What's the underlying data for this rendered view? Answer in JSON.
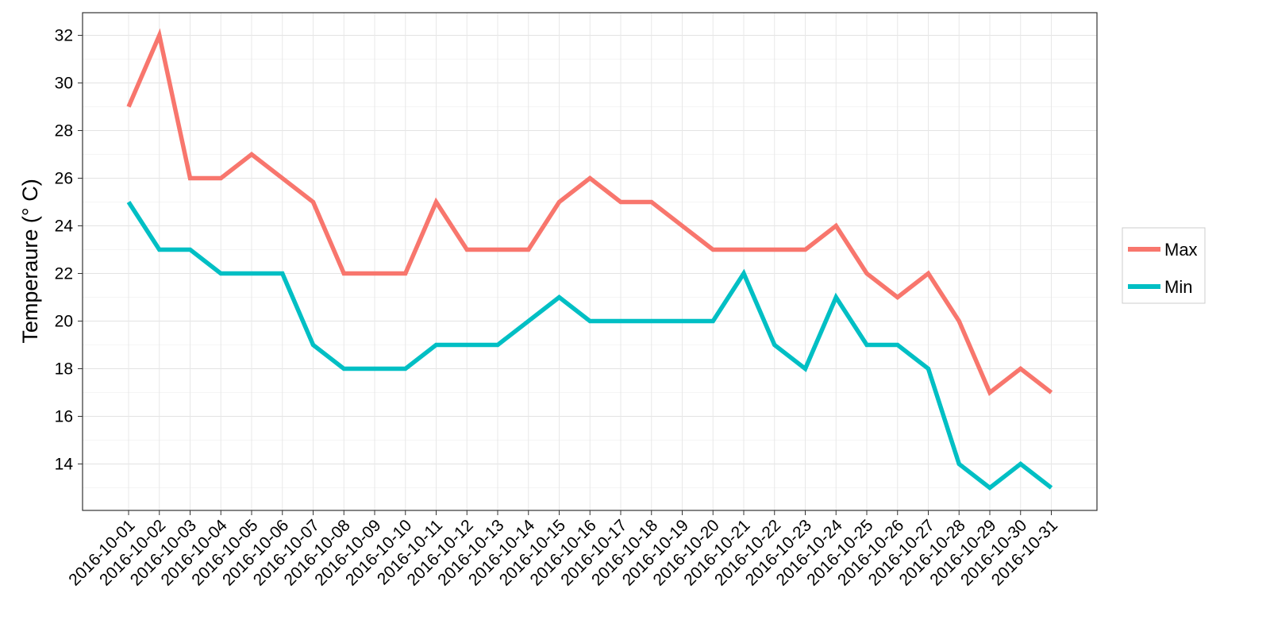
{
  "chart_data": {
    "type": "line",
    "title": "",
    "xlabel": "",
    "ylabel": "Temperaure (° C)",
    "x": [
      "2016-10-01",
      "2016-10-02",
      "2016-10-03",
      "2016-10-04",
      "2016-10-05",
      "2016-10-06",
      "2016-10-07",
      "2016-10-08",
      "2016-10-09",
      "2016-10-10",
      "2016-10-11",
      "2016-10-12",
      "2016-10-13",
      "2016-10-14",
      "2016-10-15",
      "2016-10-16",
      "2016-10-17",
      "2016-10-18",
      "2016-10-19",
      "2016-10-20",
      "2016-10-21",
      "2016-10-22",
      "2016-10-23",
      "2016-10-24",
      "2016-10-25",
      "2016-10-26",
      "2016-10-27",
      "2016-10-28",
      "2016-10-29",
      "2016-10-30",
      "2016-10-31"
    ],
    "series": [
      {
        "name": "Max",
        "color": "#f8766d",
        "values": [
          29,
          32,
          26,
          26,
          27,
          26,
          25,
          22,
          22,
          22,
          25,
          23,
          23,
          23,
          25,
          26,
          25,
          25,
          24,
          23,
          23,
          23,
          23,
          24,
          22,
          21,
          22,
          20,
          17,
          18,
          17
        ]
      },
      {
        "name": "Min",
        "color": "#00bfc4",
        "values": [
          25,
          23,
          23,
          22,
          22,
          22,
          19,
          18,
          18,
          18,
          19,
          19,
          19,
          20,
          21,
          20,
          20,
          20,
          20,
          20,
          22,
          19,
          18,
          21,
          19,
          19,
          18,
          14,
          13,
          14,
          13
        ]
      }
    ],
    "yticks": [
      14,
      16,
      18,
      20,
      22,
      24,
      26,
      28,
      30,
      32
    ],
    "ylim": [
      12.05,
      32.95
    ],
    "grid": true,
    "legend_position": "right"
  }
}
